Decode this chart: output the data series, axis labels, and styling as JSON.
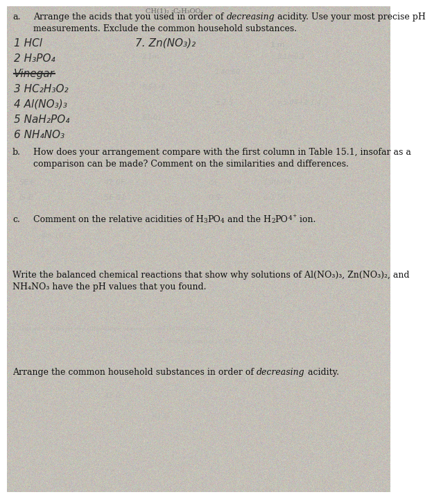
{
  "bg_color": "#b8b4ac",
  "paper_color": "#c8c4bc",
  "text_color": "#111111",
  "hw_color": "#333333",
  "faint_color": "#999999",
  "very_faint": "#bbbbbb",
  "top_faint_text": "CH(1)₂ ·C₂H₃O₃",
  "part_a_line1a": "Arrange the acids that you used in order of ",
  "part_a_line1b": "decreasing",
  "part_a_line1c": " acidity. Use your most precise pH",
  "part_a_line2": "measurements. Exclude the common household substances.",
  "hw_left": [
    "1 HCl",
    "2 H₃PO₄",
    "Vinegar",
    "3 HC₂H₃O₂",
    "4 Al(NO₃)₃",
    "5 NaH₂PO₄",
    "6 NH₄NO₃"
  ],
  "hw_right": "7. Zn(NO₃)₂",
  "hw_right_faint": "1.m",
  "part_b_line1": "How does your arrangement compare with the first column in Table 15.1, insofar as a",
  "part_b_line2": "comparison can be made? Comment on the similarities and differences.",
  "part_c_line1a": "Comment on the relative acidities of H",
  "part_c_line1b": "PO",
  "part_c_line1c": " and the H",
  "part_c_line1d": "PO",
  "part_c_line1e": " ion.",
  "write_line1": "Write the balanced chemical reactions that show why solutions of Al(NO₃)₃, Zn(NO₃)₂, and",
  "write_line2": "NH₄NO₃ have the pH values that you found.",
  "arrange_a": "Arrange the common household substances in order of ",
  "arrange_b": "decreasing",
  "arrange_c": " acidity."
}
